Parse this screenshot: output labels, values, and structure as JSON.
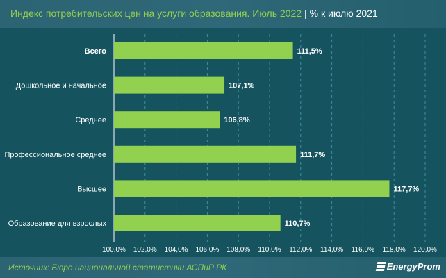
{
  "header": {
    "title": "Индекс потребительских цен на услуги образования. Июль 2022",
    "separator": "|",
    "subtitle": "% к июлю 2021"
  },
  "footer": {
    "source": "Источник: Бюро национальной статистики АСПиР РК",
    "logo": "EnergyProm"
  },
  "colors": {
    "bar": "#92d050",
    "background": "#15535f",
    "title": "#92d050"
  },
  "chart_data": {
    "type": "bar",
    "orientation": "horizontal",
    "title": "Индекс потребительских цен на услуги образования. Июль 2022",
    "subtitle": "% к июлю 2021",
    "categories": [
      "Всего",
      "Дошкольное и начальное",
      "Среднее",
      "Профессиональное среднее",
      "Высшее",
      "Образование для взрослых"
    ],
    "values": [
      111.5,
      107.1,
      106.8,
      111.7,
      117.7,
      110.7
    ],
    "value_labels": [
      "111,5%",
      "107,1%",
      "106,8%",
      "111,7%",
      "117,7%",
      "110,7%"
    ],
    "bold_categories": [
      "Всего"
    ],
    "xlim": [
      100,
      120
    ],
    "xticks": [
      100,
      102,
      104,
      106,
      108,
      110,
      112,
      114,
      116,
      118,
      120
    ],
    "xtick_labels": [
      "100,0%",
      "102,0%",
      "104,0%",
      "106,0%",
      "108,0%",
      "110,0%",
      "112,0%",
      "114,0%",
      "116,0%",
      "118,0%",
      "120,0%"
    ],
    "grid": "vertical dashed",
    "legend": "none"
  }
}
